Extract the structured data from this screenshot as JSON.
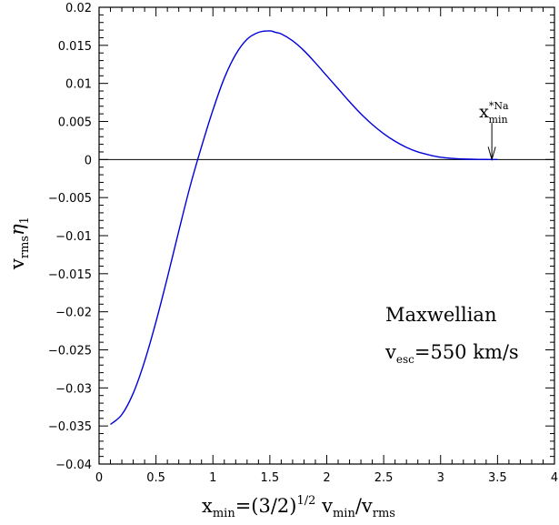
{
  "chart_data": {
    "type": "line",
    "xlabel": {
      "main": "x",
      "main_sub": "min",
      "eq": "=(3/2)",
      "sup": "1/2",
      "v1": " v",
      "v1_sub": "min",
      "slash": "/v",
      "v2_sub": "rms"
    },
    "ylabel": {
      "main": "v",
      "main_sub": "rms",
      "eta": "η",
      "eta_sub": "1"
    },
    "xlim": [
      0,
      4
    ],
    "ylim": [
      -0.04,
      0.02
    ],
    "xticks": [
      0,
      0.5,
      1,
      1.5,
      2,
      2.5,
      3,
      3.5,
      4
    ],
    "xtick_labels": [
      "0",
      "0.5",
      "1",
      "1.5",
      "2",
      "2.5",
      "3",
      "3.5",
      "4"
    ],
    "yticks": [
      -0.04,
      -0.035,
      -0.03,
      -0.025,
      -0.02,
      -0.015,
      -0.01,
      -0.005,
      0,
      0.005,
      0.01,
      0.015,
      0.02
    ],
    "ytick_labels": [
      "−0.04",
      "−0.035",
      "−0.03",
      "−0.025",
      "−0.02",
      "−0.015",
      "−0.01",
      "−0.005",
      "0",
      "0.005",
      "0.01",
      "0.015",
      "0.02"
    ],
    "grid": false,
    "zero_line": true,
    "series": [
      {
        "color": "#0000dd",
        "x": [
          0.1,
          0.2,
          0.3,
          0.4,
          0.5,
          0.6,
          0.7,
          0.8,
          0.9,
          1.0,
          1.1,
          1.2,
          1.3,
          1.4,
          1.5,
          1.55,
          1.6,
          1.7,
          1.8,
          1.9,
          2.0,
          2.1,
          2.2,
          2.3,
          2.4,
          2.5,
          2.6,
          2.7,
          2.8,
          2.9,
          3.0,
          3.1,
          3.2,
          3.3,
          3.4,
          3.45,
          3.5
        ],
        "y": [
          -0.0348,
          -0.0335,
          -0.0307,
          -0.0265,
          -0.0213,
          -0.0155,
          -0.0094,
          -0.0035,
          0.0017,
          0.0065,
          0.0107,
          0.0138,
          0.0158,
          0.0167,
          0.0169,
          0.0167,
          0.0165,
          0.0156,
          0.0143,
          0.0127,
          0.011,
          0.0093,
          0.0076,
          0.006,
          0.0046,
          0.0034,
          0.0024,
          0.0016,
          0.001,
          0.0006,
          0.0003,
          0.00015,
          7e-05,
          3e-05,
          1e-05,
          0.0,
          0.0
        ]
      }
    ],
    "arrow_annotation": {
      "x": 3.45,
      "y_from": 0.0048,
      "y_to": 0.0,
      "label": "x",
      "label_sup": "*Na",
      "label_sub": "min"
    },
    "text_annotations": {
      "line1": "Maxwellian",
      "line2_main": "v",
      "line2_sub": "esc",
      "line2_rest": "=550 km/s"
    }
  }
}
